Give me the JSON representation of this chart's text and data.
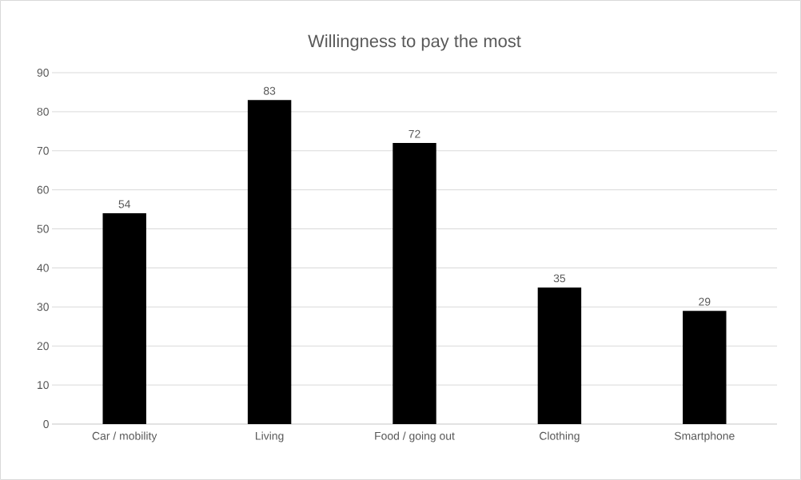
{
  "chart_data": {
    "type": "bar",
    "title": "Willingness to pay the most",
    "categories": [
      "Car / mobility",
      "Living",
      "Food / going out",
      "Clothing",
      "Smartphone"
    ],
    "values": [
      54,
      83,
      72,
      35,
      29
    ],
    "color": "#000000",
    "ylim": [
      0,
      90
    ],
    "yticks": [
      0,
      10,
      20,
      30,
      40,
      50,
      60,
      70,
      80,
      90
    ],
    "grid": "y",
    "data_labels": true
  }
}
